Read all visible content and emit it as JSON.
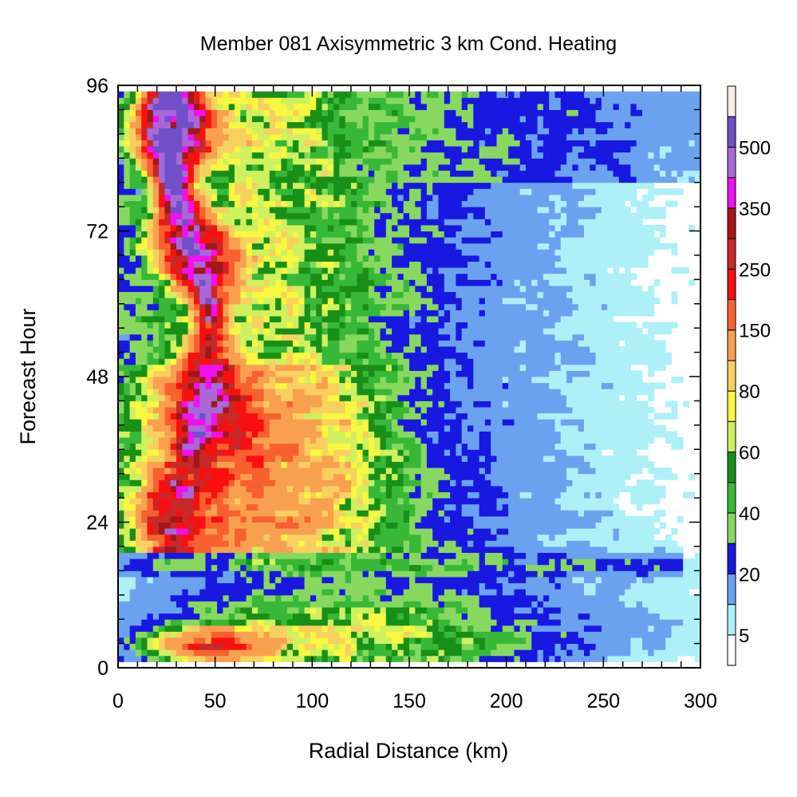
{
  "chart_data": {
    "type": "heatmap",
    "title": "Member 081 Axisymmetric 3 km Cond. Heating",
    "xlabel": "Radial Distance (km)",
    "ylabel": "Forecast Hour",
    "xlim": [
      0,
      300
    ],
    "ylim": [
      0,
      96
    ],
    "xticks": [
      0,
      50,
      100,
      150,
      200,
      250,
      300
    ],
    "xtick_labels": [
      "0",
      "50",
      "100",
      "150",
      "200",
      "250",
      "300"
    ],
    "yticks": [
      0,
      24,
      48,
      72,
      96
    ],
    "ytick_labels": [
      "0",
      "24",
      "48",
      "72",
      "96"
    ],
    "grid": false,
    "colorbar": {
      "position": "right",
      "levels": [
        5,
        10,
        20,
        30,
        40,
        50,
        60,
        70,
        80,
        100,
        150,
        200,
        250,
        300,
        350,
        400,
        500
      ],
      "labels": [
        "5",
        "20",
        "40",
        "60",
        "80",
        "150",
        "250",
        "350",
        "500"
      ],
      "colors": [
        "#ffffff",
        "#aef0f8",
        "#6aa2f0",
        "#1818e0",
        "#88d860",
        "#38b838",
        "#189018",
        "#d0f060",
        "#f8f840",
        "#f8d060",
        "#f8a050",
        "#f86030",
        "#f81010",
        "#c82828",
        "#a01818",
        "#f010f0",
        "#a868d8",
        "#7050c8",
        "#f8ece8"
      ]
    }
  }
}
